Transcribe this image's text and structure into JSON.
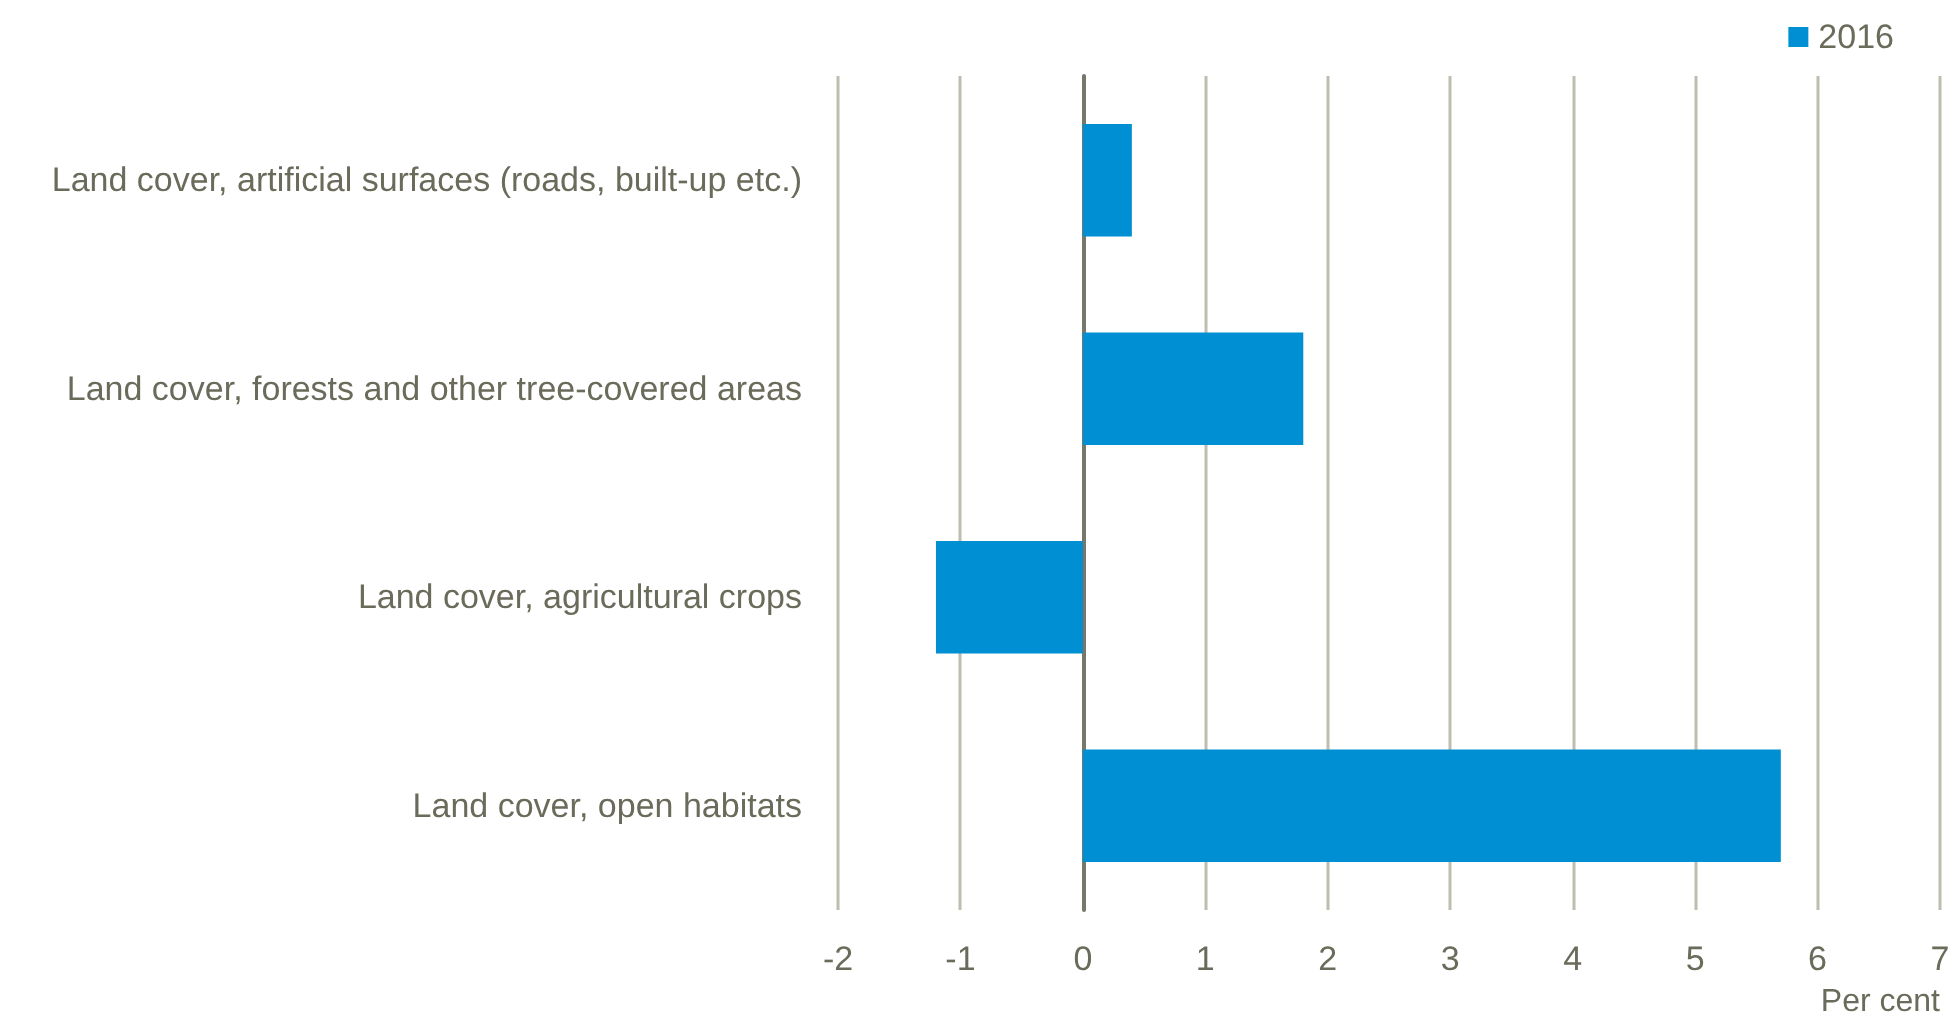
{
  "chart_data": {
    "type": "bar",
    "orientation": "horizontal",
    "categories": [
      "Land cover, artificial surfaces (roads, built-up etc.)",
      "Land cover, forests and other tree-covered areas",
      "Land cover, agricultural crops",
      "Land cover, open habitats"
    ],
    "series": [
      {
        "name": "2016",
        "color": "#008fd3",
        "values": [
          0.4,
          1.8,
          -1.2,
          5.7
        ]
      }
    ],
    "xlabel": "Per cent",
    "xlim": [
      -2,
      7
    ],
    "xticks": [
      -2,
      -1,
      0,
      1,
      2,
      3,
      4,
      5,
      6,
      7
    ],
    "grid": "x",
    "legend": "top right"
  }
}
